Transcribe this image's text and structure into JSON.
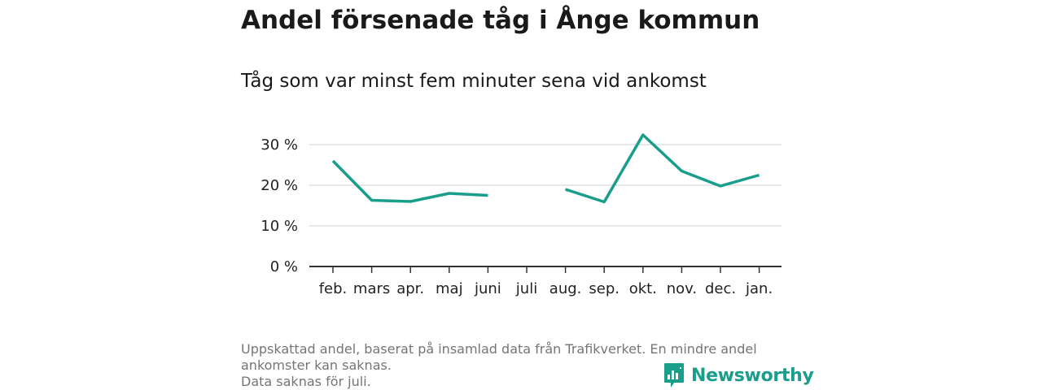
{
  "title": "Andel försenade tåg i Ånge kommun",
  "subtitle": "Tåg som var minst fem minuter sena vid ankomst",
  "footnote": {
    "line1": "Uppskattad andel, baserat på insamlad data från Trafikverket. En mindre andel ankomster kan saknas.",
    "line2": "Data saknas för juli."
  },
  "brand": {
    "name": "Newsworthy",
    "icon": "bar-chart-speech-bubble-icon",
    "color": "#1a9e8c"
  },
  "chart_data": {
    "type": "line",
    "title": "Andel försenade tåg i Ånge kommun",
    "subtitle": "Tåg som var minst fem minuter sena vid ankomst",
    "categories": [
      "feb.",
      "mars",
      "apr.",
      "maj",
      "juni",
      "juli",
      "aug.",
      "sep.",
      "okt.",
      "nov.",
      "dec.",
      "jan."
    ],
    "series": [
      {
        "values": [
          26,
          16.3,
          16,
          18,
          17.5,
          null,
          19,
          15.9,
          32.4,
          23.5,
          19.8,
          22.5
        ],
        "color": "#1a9e8c"
      }
    ],
    "y_ticks": [
      0,
      10,
      20,
      30
    ],
    "y_tick_labels": [
      "0 %",
      "10 %",
      "20 %",
      "30 %"
    ],
    "ylim": [
      0,
      32.4
    ],
    "grid": true,
    "legend": "none"
  }
}
